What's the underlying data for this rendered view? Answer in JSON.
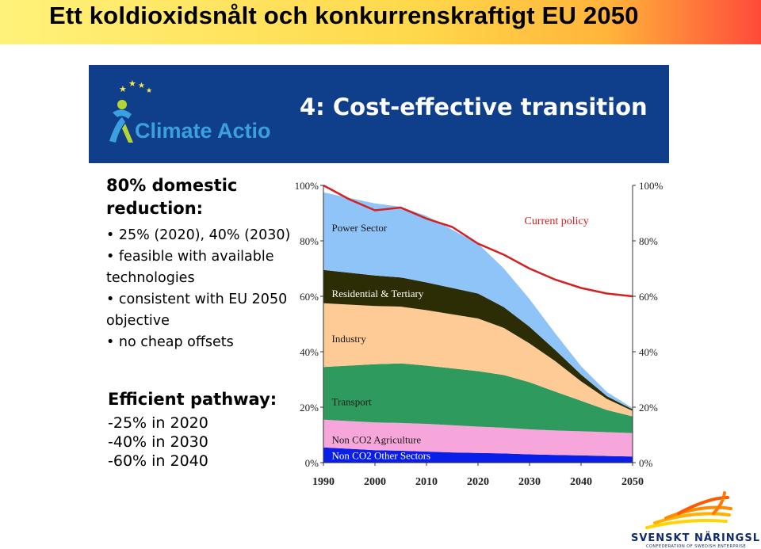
{
  "slide": {
    "title": "Ett koldioxidsnålt och konkurrenskraftigt EU 2050",
    "banner_title": "4: Cost-effective transition",
    "logo_text": "Climate Action",
    "brand": "SVENSKT NÄRINGSLIV",
    "brand_sub": "CONFEDERATION OF SWEDISH ENTERPRISE",
    "colors": {
      "title_gradient_start": "#fff27a",
      "title_gradient_end": "#ff4a3a",
      "banner": "#0f3f8a",
      "logo_green": "#b6d433",
      "logo_blue": "#3aa0e0"
    }
  },
  "left": {
    "heading_line1": "80% domestic",
    "heading_line2": "reduction:",
    "bullets": [
      "25% (2020), 40% (2030)",
      "feasible with available technologies",
      "consistent with EU 2050 objective",
      "no cheap offsets"
    ]
  },
  "pathway": {
    "heading": "Efficient pathway:",
    "items": [
      "-25% in 2020",
      "-40% in 2030",
      "-60% in 2040"
    ]
  },
  "chart_data": {
    "type": "area",
    "x": [
      1990,
      1995,
      2000,
      2005,
      2010,
      2015,
      2020,
      2025,
      2030,
      2035,
      2040,
      2045,
      2050
    ],
    "xticks": [
      "1990",
      "2000",
      "2010",
      "2020",
      "2030",
      "2040",
      "2050"
    ],
    "yticks": [
      "0%",
      "20%",
      "40%",
      "60%",
      "80%",
      "100%"
    ],
    "ylim": [
      0,
      100
    ],
    "grid": false,
    "series": [
      {
        "name": "Non CO2 Other Sectors",
        "color": "#0a1eea",
        "values": [
          5.5,
          5,
          4.5,
          4.3,
          4,
          3.7,
          3.5,
          3.3,
          3,
          2.8,
          2.6,
          2.4,
          2.2
        ]
      },
      {
        "name": "Non CO2 Agriculture",
        "color": "#f7a6dc",
        "values": [
          10,
          10,
          10,
          10,
          10,
          9.8,
          9.5,
          9.3,
          9,
          8.8,
          8.7,
          8.6,
          8.5
        ]
      },
      {
        "name": "Transport",
        "color": "#2f9a5d",
        "values": [
          19,
          20,
          21,
          21.5,
          21,
          20.5,
          20,
          19,
          17,
          14,
          11,
          8,
          6
        ]
      },
      {
        "name": "Industry",
        "color": "#fecb96",
        "values": [
          23,
          22,
          21,
          20.5,
          20,
          19.5,
          19,
          17,
          14,
          11,
          7,
          4,
          2
        ]
      },
      {
        "name": "Residential & Tertiary",
        "color": "#2d2d05",
        "values": [
          12,
          11.5,
          11,
          10.5,
          10,
          9.5,
          9,
          7.5,
          6,
          4,
          2.5,
          1,
          0.5
        ]
      },
      {
        "name": "Power Sector",
        "color": "#8fc4f8",
        "values": [
          28,
          27,
          26,
          25.5,
          24,
          21,
          18,
          14,
          10,
          6,
          3,
          1.5,
          0.5
        ]
      }
    ],
    "current_policy": {
      "name": "Current policy",
      "color": "#d42020",
      "values": [
        100,
        95,
        91,
        92,
        88,
        85,
        79,
        75,
        70,
        66,
        63,
        61,
        60
      ]
    }
  }
}
